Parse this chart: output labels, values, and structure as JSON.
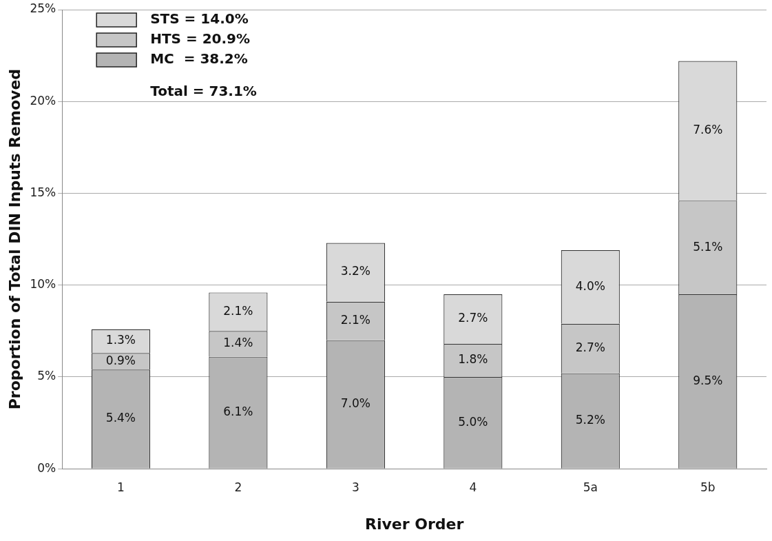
{
  "chart_data": {
    "type": "bar",
    "stacked": true,
    "xlabel": "River Order",
    "ylabel": "Proportion of Total DIN Inputs Removed",
    "categories": [
      "1",
      "2",
      "3",
      "4",
      "5a",
      "5b"
    ],
    "series": [
      {
        "name": "MC  = 38.2%",
        "color": "#b4b4b4",
        "values": [
          5.4,
          6.1,
          7.0,
          5.0,
          5.2,
          9.5
        ],
        "value_labels": [
          "5.4%",
          "6.1%",
          "7.0%",
          "5.0%",
          "5.2%",
          "9.5%"
        ]
      },
      {
        "name": "HTS = 20.9%",
        "color": "#c6c6c6",
        "values": [
          0.9,
          1.4,
          2.1,
          1.8,
          2.7,
          5.1
        ],
        "value_labels": [
          "0.9%",
          "1.4%",
          "2.1%",
          "1.8%",
          "2.7%",
          "5.1%"
        ]
      },
      {
        "name": "STS = 14.0%",
        "color": "#d9d9d9",
        "values": [
          1.3,
          2.1,
          3.2,
          2.7,
          4.0,
          7.6
        ],
        "value_labels": [
          "1.3%",
          "2.1%",
          "3.2%",
          "2.7%",
          "4.0%",
          "7.6%"
        ]
      }
    ],
    "ylim": [
      0,
      25
    ],
    "yticks": [
      {
        "value": 0,
        "label": "0%"
      },
      {
        "value": 5,
        "label": "5%"
      },
      {
        "value": 10,
        "label": "10%"
      },
      {
        "value": 15,
        "label": "15%"
      },
      {
        "value": 20,
        "label": "20%"
      },
      {
        "value": 25,
        "label": "25%"
      }
    ],
    "grid": "y",
    "legend": "top left",
    "annotations": [
      "Total = 73.1%"
    ]
  }
}
